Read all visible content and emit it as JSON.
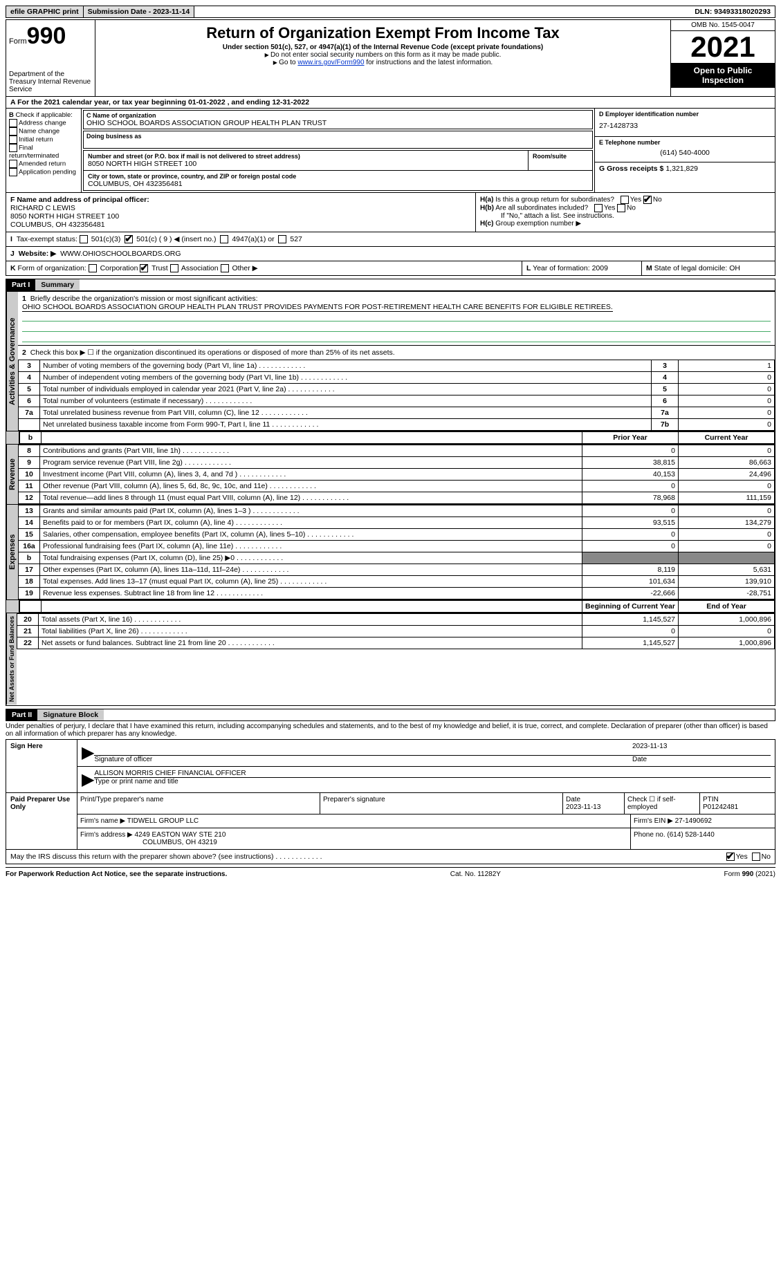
{
  "topbar": {
    "efile": "efile GRAPHIC print",
    "submission": "Submission Date - 2023-11-14",
    "dln": "DLN: 93493318020293"
  },
  "header": {
    "form_prefix": "Form",
    "form_number": "990",
    "title": "Return of Organization Exempt From Income Tax",
    "subtitle": "Under section 501(c), 527, or 4947(a)(1) of the Internal Revenue Code (except private foundations)",
    "note1": "Do not enter social security numbers on this form as it may be made public.",
    "note2_pre": "Go to ",
    "note2_link": "www.irs.gov/Form990",
    "note2_post": " for instructions and the latest information.",
    "dept": "Department of the Treasury\nInternal Revenue Service",
    "omb": "OMB No. 1545-0047",
    "year": "2021",
    "inspect": "Open to Public Inspection"
  },
  "periodA": "For the 2021 calendar year, or tax year beginning 01-01-2022  , and ending 12-31-2022",
  "checkB": {
    "label": "Check if applicable:",
    "items": [
      "Address change",
      "Name change",
      "Initial return",
      "Final return/terminated",
      "Amended return",
      "Application pending"
    ]
  },
  "orgC": {
    "name_label": "Name of organization",
    "name": "OHIO SCHOOL BOARDS ASSOCIATION GROUP HEALTH PLAN TRUST",
    "dba_label": "Doing business as",
    "dba": "",
    "addr_label": "Number and street (or P.O. box if mail is not delivered to street address)",
    "addr": "8050 NORTH HIGH STREET 100",
    "room_label": "Room/suite",
    "city_label": "City or town, state or province, country, and ZIP or foreign postal code",
    "city": "COLUMBUS, OH  432356481"
  },
  "right": {
    "d_label": "D Employer identification number",
    "ein": "27-1428733",
    "e_label": "E Telephone number",
    "phone": "(614) 540-4000",
    "g_label": "G Gross receipts $",
    "gross": "1,321,829"
  },
  "officerF": {
    "label": "F  Name and address of principal officer:",
    "name": "RICHARD C LEWIS",
    "addr1": "8050 NORTH HIGH STREET 100",
    "addr2": "COLUMBUS, OH  432356481"
  },
  "h": {
    "ha": "Is this a group return for subordinates?",
    "hb": "Are all subordinates included?",
    "hb_note": "If \"No,\" attach a list. See instructions.",
    "hc": "Group exemption number ▶"
  },
  "taxI": {
    "label": "Tax-exempt status:",
    "opts": [
      "501(c)(3)",
      "501(c) ( 9 ) ◀ (insert no.)",
      "4947(a)(1) or",
      "527"
    ]
  },
  "websiteJ": {
    "label": "Website: ▶",
    "value": "WWW.OHIOSCHOOLBOARDS.ORG"
  },
  "formK": {
    "label": "Form of organization:",
    "opts": [
      "Corporation",
      "Trust",
      "Association",
      "Other ▶"
    ]
  },
  "l": {
    "label": "Year of formation:",
    "value": "2009"
  },
  "m": {
    "label": "State of legal domicile:",
    "value": "OH"
  },
  "part1": {
    "hdr": "Part I",
    "title": "Summary"
  },
  "summary": {
    "line1_label": "Briefly describe the organization's mission or most significant activities:",
    "line1_text": "OHIO SCHOOL BOARDS ASSOCIATION GROUP HEALTH PLAN TRUST PROVIDES PAYMENTS FOR POST-RETIREMENT HEALTH CARE BENEFITS FOR ELIGIBLE RETIREES.",
    "line2": "Check this box ▶ ☐ if the organization discontinued its operations or disposed of more than 25% of its net assets.",
    "rows_ag": [
      {
        "n": "3",
        "t": "Number of voting members of the governing body (Part VI, line 1a)",
        "ref": "3",
        "v": "1"
      },
      {
        "n": "4",
        "t": "Number of independent voting members of the governing body (Part VI, line 1b)",
        "ref": "4",
        "v": "0"
      },
      {
        "n": "5",
        "t": "Total number of individuals employed in calendar year 2021 (Part V, line 2a)",
        "ref": "5",
        "v": "0"
      },
      {
        "n": "6",
        "t": "Total number of volunteers (estimate if necessary)",
        "ref": "6",
        "v": "0"
      },
      {
        "n": "7a",
        "t": "Total unrelated business revenue from Part VIII, column (C), line 12",
        "ref": "7a",
        "v": "0"
      },
      {
        "n": "",
        "t": "Net unrelated business taxable income from Form 990-T, Part I, line 11",
        "ref": "7b",
        "v": "0"
      }
    ],
    "colheads": {
      "prior": "Prior Year",
      "current": "Current Year"
    },
    "rows_rev": [
      {
        "n": "8",
        "t": "Contributions and grants (Part VIII, line 1h)",
        "p": "0",
        "c": "0"
      },
      {
        "n": "9",
        "t": "Program service revenue (Part VIII, line 2g)",
        "p": "38,815",
        "c": "86,663"
      },
      {
        "n": "10",
        "t": "Investment income (Part VIII, column (A), lines 3, 4, and 7d )",
        "p": "40,153",
        "c": "24,496"
      },
      {
        "n": "11",
        "t": "Other revenue (Part VIII, column (A), lines 5, 6d, 8c, 9c, 10c, and 11e)",
        "p": "0",
        "c": "0"
      },
      {
        "n": "12",
        "t": "Total revenue—add lines 8 through 11 (must equal Part VIII, column (A), line 12)",
        "p": "78,968",
        "c": "111,159"
      }
    ],
    "rows_exp": [
      {
        "n": "13",
        "t": "Grants and similar amounts paid (Part IX, column (A), lines 1–3 )",
        "p": "0",
        "c": "0"
      },
      {
        "n": "14",
        "t": "Benefits paid to or for members (Part IX, column (A), line 4)",
        "p": "93,515",
        "c": "134,279"
      },
      {
        "n": "15",
        "t": "Salaries, other compensation, employee benefits (Part IX, column (A), lines 5–10)",
        "p": "0",
        "c": "0"
      },
      {
        "n": "16a",
        "t": "Professional fundraising fees (Part IX, column (A), line 11e)",
        "p": "0",
        "c": "0"
      },
      {
        "n": "b",
        "t": "Total fundraising expenses (Part IX, column (D), line 25) ▶0",
        "p": "__SHADE__",
        "c": "__SHADE__"
      },
      {
        "n": "17",
        "t": "Other expenses (Part IX, column (A), lines 11a–11d, 11f–24e)",
        "p": "8,119",
        "c": "5,631"
      },
      {
        "n": "18",
        "t": "Total expenses. Add lines 13–17 (must equal Part IX, column (A), line 25)",
        "p": "101,634",
        "c": "139,910"
      },
      {
        "n": "19",
        "t": "Revenue less expenses. Subtract line 18 from line 12",
        "p": "-22,666",
        "c": "-28,751"
      }
    ],
    "colheads2": {
      "prior": "Beginning of Current Year",
      "current": "End of Year"
    },
    "rows_net": [
      {
        "n": "20",
        "t": "Total assets (Part X, line 16)",
        "p": "1,145,527",
        "c": "1,000,896"
      },
      {
        "n": "21",
        "t": "Total liabilities (Part X, line 26)",
        "p": "0",
        "c": "0"
      },
      {
        "n": "22",
        "t": "Net assets or fund balances. Subtract line 21 from line 20",
        "p": "1,145,527",
        "c": "1,000,896"
      }
    ],
    "tabs": {
      "ag": "Activities & Governance",
      "rev": "Revenue",
      "exp": "Expenses",
      "net": "Net Assets or Fund Balances"
    }
  },
  "part2": {
    "hdr": "Part II",
    "title": "Signature Block"
  },
  "sig": {
    "perjury": "Under penalties of perjury, I declare that I have examined this return, including accompanying schedules and statements, and to the best of my knowledge and belief, it is true, correct, and complete. Declaration of preparer (other than officer) is based on all information of which preparer has any knowledge.",
    "sign_here": "Sign Here",
    "sig_officer": "Signature of officer",
    "sig_date": "2023-11-13",
    "date_label": "Date",
    "name_title": "ALLISON MORRIS  CHIEF FINANCIAL OFFICER",
    "name_title_label": "Type or print name and title",
    "paid": "Paid Preparer Use Only",
    "prep_name_label": "Print/Type preparer's name",
    "prep_name": "",
    "prep_sig_label": "Preparer's signature",
    "prep_date_label": "Date",
    "prep_date": "2023-11-13",
    "self_emp": "Check ☐ if self-employed",
    "ptin_label": "PTIN",
    "ptin": "P01242481",
    "firm_name_label": "Firm's name    ▶",
    "firm_name": "TIDWELL GROUP LLC",
    "firm_ein_label": "Firm's EIN ▶",
    "firm_ein": "27-1490692",
    "firm_addr_label": "Firm's address ▶",
    "firm_addr1": "4249 EASTON WAY STE 210",
    "firm_addr2": "COLUMBUS, OH  43219",
    "firm_phone_label": "Phone no.",
    "firm_phone": "(614) 528-1440",
    "discuss": "May the IRS discuss this return with the preparer shown above? (see instructions)",
    "yes": "Yes",
    "no": "No"
  },
  "footer": {
    "left": "For Paperwork Reduction Act Notice, see the separate instructions.",
    "mid": "Cat. No. 11282Y",
    "right": "Form 990 (2021)"
  }
}
